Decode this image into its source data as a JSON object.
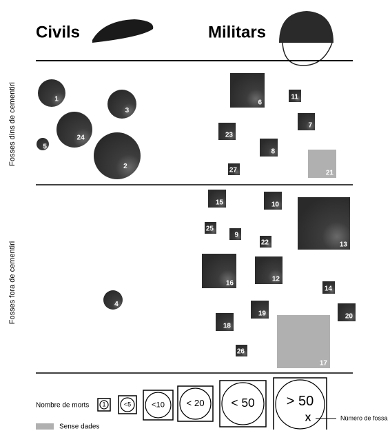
{
  "header": {
    "civil_title": "Civils",
    "military_title": "Militars"
  },
  "rows": [
    "Fosses dins de cementiri",
    "Fosses fora de cementiri"
  ],
  "nodes": [
    {
      "label": "1"
    },
    {
      "label": "3"
    },
    {
      "label": "24"
    },
    {
      "label": "5"
    },
    {
      "label": "2"
    },
    {
      "label": "4"
    },
    {
      "label": "6"
    },
    {
      "label": "11"
    },
    {
      "label": "7"
    },
    {
      "label": "23"
    },
    {
      "label": "8"
    },
    {
      "label": "27"
    },
    {
      "label": "21"
    },
    {
      "label": "15"
    },
    {
      "label": "10"
    },
    {
      "label": "13"
    },
    {
      "label": "25"
    },
    {
      "label": "9"
    },
    {
      "label": "22"
    },
    {
      "label": "16"
    },
    {
      "label": "12"
    },
    {
      "label": "14"
    },
    {
      "label": "19"
    },
    {
      "label": "20"
    },
    {
      "label": "18"
    },
    {
      "label": "17"
    },
    {
      "label": "26"
    }
  ],
  "legend": {
    "title": "Nombre de morts",
    "sizes": [
      "1",
      "<5",
      "<10",
      "< 20",
      "< 50",
      "> 50"
    ],
    "no_data": "Sense dades",
    "marker": "X",
    "marker_label": "Número de fossa"
  }
}
